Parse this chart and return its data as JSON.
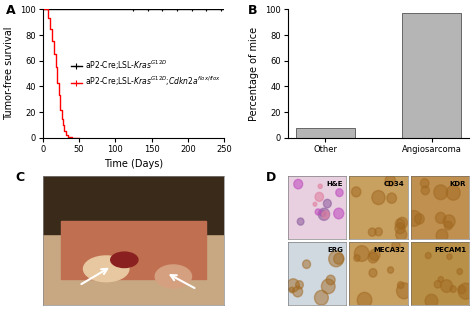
{
  "panel_A": {
    "xlabel": "Time (Days)",
    "ylabel": "Tumor-free survival",
    "xlim": [
      0,
      250
    ],
    "ylim": [
      0,
      100
    ],
    "xticks": [
      0,
      50,
      100,
      150,
      200,
      250
    ],
    "yticks": [
      0,
      20,
      40,
      60,
      80,
      100
    ],
    "black_line_x": [
      0,
      250
    ],
    "black_line_y": [
      100,
      100
    ],
    "black_color": "#000000",
    "black_label": "aP2-Cre;LSL-$\\it{Kras}$$^{G12D}$",
    "red_x": [
      0,
      8,
      10,
      13,
      16,
      18,
      20,
      22,
      24,
      26,
      28,
      30,
      32,
      35,
      40,
      50
    ],
    "red_y": [
      100,
      93,
      85,
      75,
      65,
      55,
      43,
      33,
      22,
      15,
      10,
      5,
      2,
      1,
      0,
      0
    ],
    "red_color": "#ff0000",
    "red_label": "aP2-Cre;LSL-$\\it{Kras}$$^{G12D}$;$\\it{Cdkn2a}$$^{flox/flox}$",
    "censored_x": [
      125,
      145,
      165,
      185,
      205,
      225,
      245
    ],
    "censored_y": [
      100,
      100,
      100,
      100,
      100,
      100,
      100
    ]
  },
  "panel_B": {
    "ylabel": "Percentage of mice",
    "categories": [
      "Other",
      "Angiosarcoma"
    ],
    "values": [
      8,
      97
    ],
    "bar_color": "#b5b5b5",
    "bar_edge_color": "#666666",
    "ylim": [
      0,
      100
    ],
    "yticks": [
      0,
      20,
      40,
      60,
      80,
      100
    ]
  },
  "panel_C": {
    "bg_color": "#c8a882"
  },
  "panel_D": {
    "cells": [
      {
        "label": "H&E",
        "bg": "#e8d0e0",
        "text_color": "#000000"
      },
      {
        "label": "CD34",
        "bg": "#c8a060",
        "text_color": "#000000"
      },
      {
        "label": "KDR",
        "bg": "#c09050",
        "text_color": "#000000"
      },
      {
        "label": "ERG",
        "bg": "#d0d8e0",
        "text_color": "#000000"
      },
      {
        "label": "MECA32",
        "bg": "#c8a060",
        "text_color": "#000000"
      },
      {
        "label": "PECAM1",
        "bg": "#b89048",
        "text_color": "#000000"
      }
    ]
  },
  "background_color": "#ffffff",
  "tick_fontsize": 6,
  "label_fontsize": 7,
  "legend_fontsize": 5.5,
  "panel_label_fontsize": 9
}
